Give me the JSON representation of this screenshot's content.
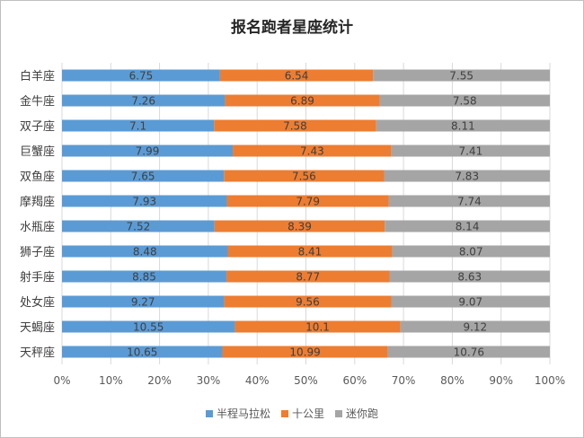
{
  "chart_data": {
    "type": "bar",
    "orientation": "horizontal",
    "stacked": "percent",
    "title": "报名跑者星座统计",
    "categories": [
      "白羊座",
      "金牛座",
      "双子座",
      "巨蟹座",
      "双鱼座",
      "摩羯座",
      "水瓶座",
      "狮子座",
      "射手座",
      "处女座",
      "天蝎座",
      "天秤座"
    ],
    "series": [
      {
        "name": "半程马拉松",
        "color": "#5b9bd5",
        "values": [
          6.75,
          7.26,
          7.1,
          7.99,
          7.65,
          7.93,
          7.52,
          8.48,
          8.85,
          9.27,
          10.55,
          10.65
        ]
      },
      {
        "name": "十公里",
        "color": "#ed7d31",
        "values": [
          6.54,
          6.89,
          7.58,
          7.43,
          7.56,
          7.79,
          8.39,
          8.41,
          8.77,
          9.56,
          10.1,
          10.99
        ]
      },
      {
        "name": "迷你跑",
        "color": "#a5a5a5",
        "values": [
          7.55,
          7.58,
          8.11,
          7.41,
          7.83,
          7.74,
          8.14,
          8.07,
          8.63,
          9.07,
          9.12,
          10.76
        ]
      }
    ],
    "x_ticks": [
      "0%",
      "10%",
      "20%",
      "30%",
      "40%",
      "50%",
      "60%",
      "70%",
      "80%",
      "90%",
      "100%"
    ],
    "xlim": [
      0,
      100
    ],
    "grid": true,
    "legend_position": "bottom"
  }
}
